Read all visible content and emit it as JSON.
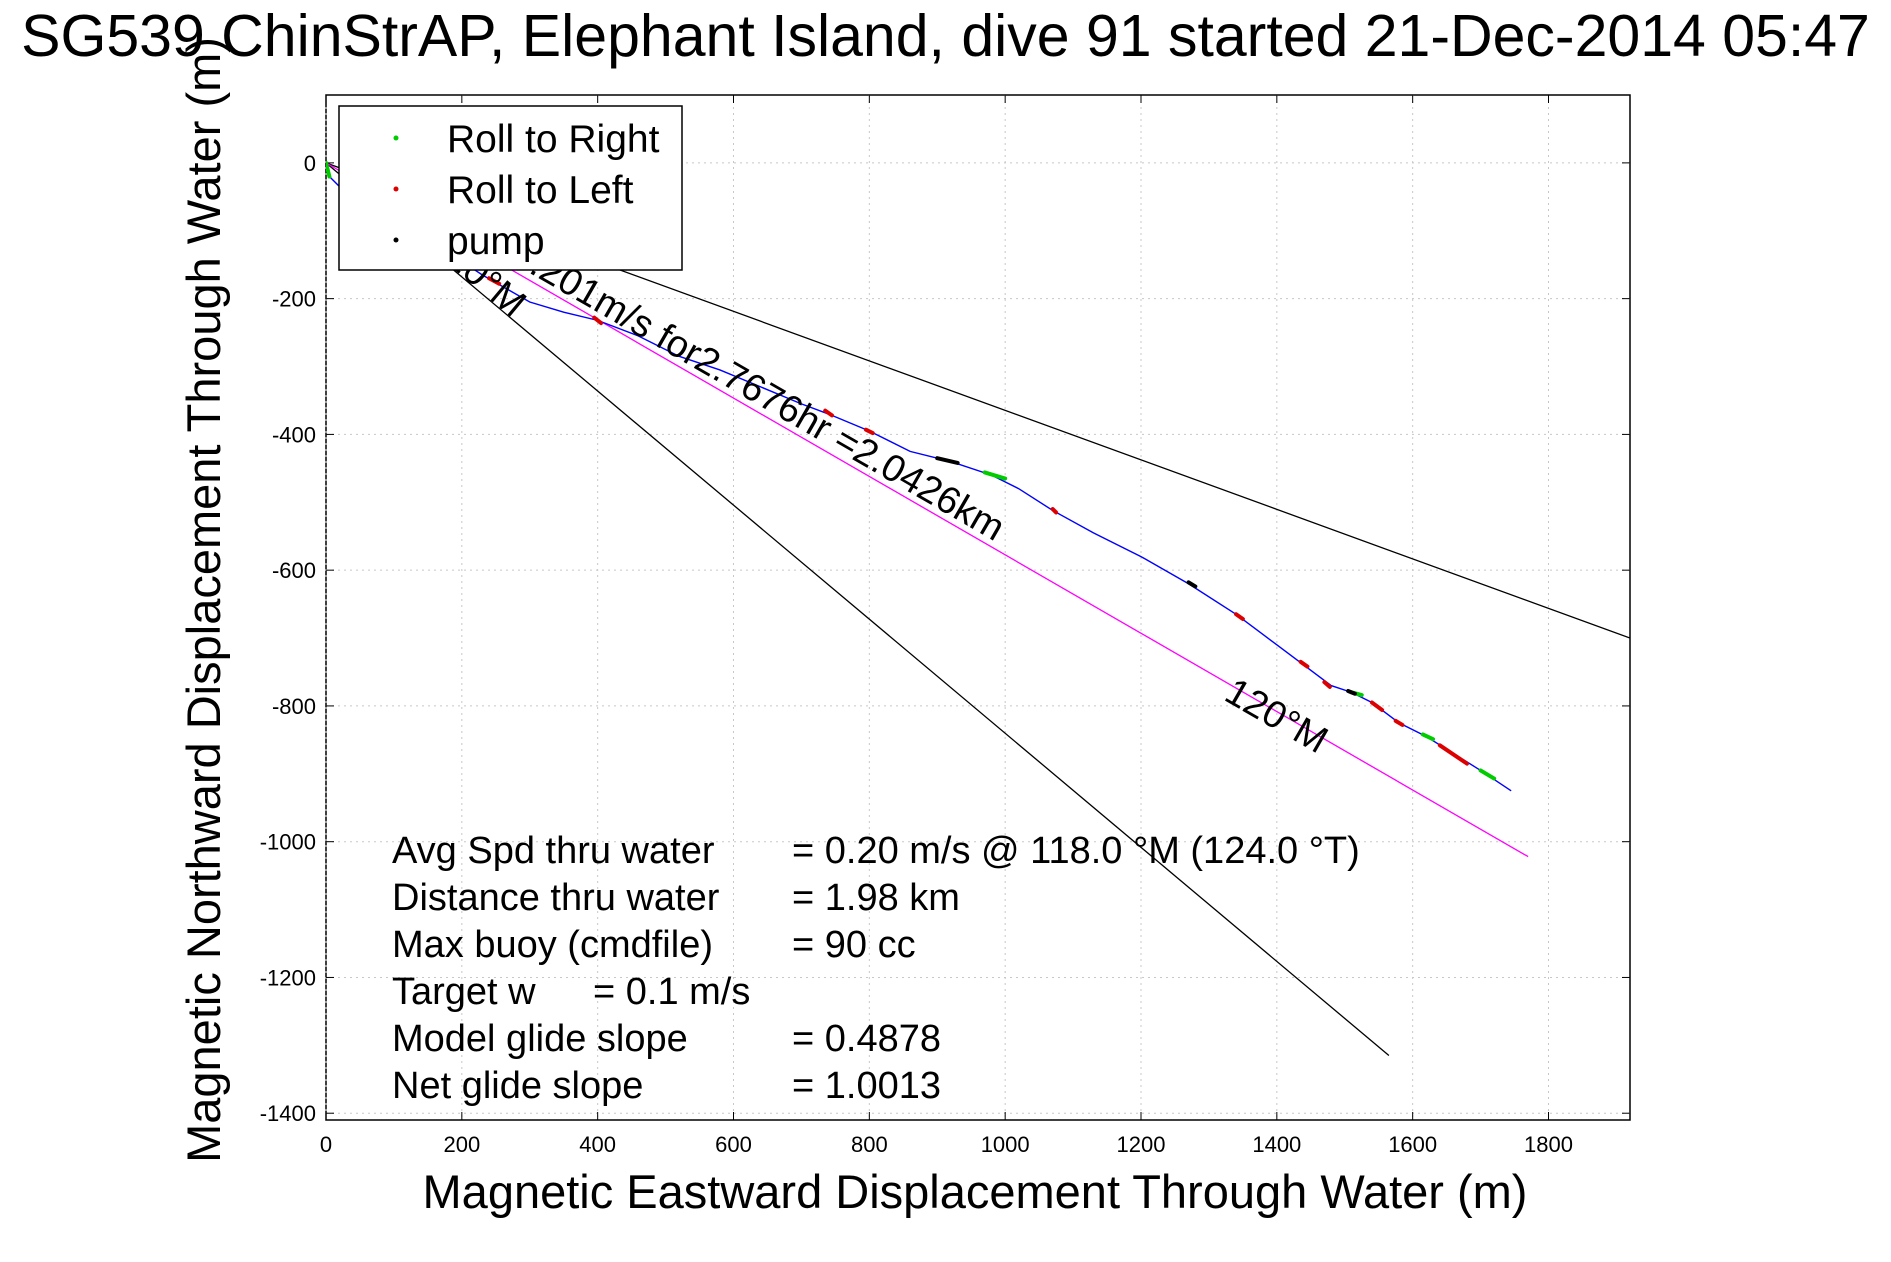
{
  "chart_data": {
    "type": "line",
    "title": "SG539 ChinStrAP, Elephant Island, dive 91 started 21-Dec-2014 05:47",
    "xlabel": "Magnetic Eastward Displacement Through Water (m)",
    "ylabel": "Magnetic Northward Displacement Through Water (m)",
    "xlim": [
      0,
      1920
    ],
    "ylim": [
      -1410,
      100
    ],
    "xticks": [
      0,
      200,
      400,
      600,
      800,
      1000,
      1200,
      1400,
      1600,
      1800
    ],
    "yticks": [
      0,
      -200,
      -400,
      -600,
      -800,
      -1000,
      -1200,
      -1400
    ],
    "grid": true,
    "legend_position": "top-left",
    "legend": [
      {
        "label": "Roll to Right",
        "color": "#00cc00"
      },
      {
        "label": "Roll to Left",
        "color": "#dd0000"
      },
      {
        "label": "pump",
        "color": "#000000"
      }
    ],
    "track": {
      "color": "#0000ff",
      "points": [
        [
          0,
          0
        ],
        [
          5,
          -20
        ],
        [
          20,
          -35
        ],
        [
          60,
          -60
        ],
        [
          110,
          -90
        ],
        [
          170,
          -125
        ],
        [
          230,
          -165
        ],
        [
          300,
          -205
        ],
        [
          350,
          -220
        ],
        [
          400,
          -232
        ],
        [
          460,
          -255
        ],
        [
          520,
          -285
        ],
        [
          580,
          -305
        ],
        [
          640,
          -330
        ],
        [
          700,
          -355
        ],
        [
          740,
          -370
        ],
        [
          800,
          -395
        ],
        [
          860,
          -425
        ],
        [
          920,
          -440
        ],
        [
          980,
          -460
        ],
        [
          1020,
          -480
        ],
        [
          1070,
          -512
        ],
        [
          1130,
          -545
        ],
        [
          1200,
          -580
        ],
        [
          1270,
          -620
        ],
        [
          1340,
          -665
        ],
        [
          1400,
          -710
        ],
        [
          1440,
          -740
        ],
        [
          1480,
          -770
        ],
        [
          1510,
          -780
        ],
        [
          1540,
          -795
        ],
        [
          1580,
          -825
        ],
        [
          1620,
          -845
        ],
        [
          1660,
          -870
        ],
        [
          1700,
          -895
        ],
        [
          1745,
          -925
        ]
      ]
    },
    "roll_right_segments": [
      [
        [
          0,
          0
        ],
        [
          5,
          -20
        ]
      ],
      [
        [
          970,
          -456
        ],
        [
          1000,
          -465
        ]
      ],
      [
        [
          1510,
          -780
        ],
        [
          1525,
          -784
        ]
      ],
      [
        [
          1615,
          -842
        ],
        [
          1630,
          -849
        ]
      ],
      [
        [
          1700,
          -895
        ],
        [
          1720,
          -907
        ]
      ]
    ],
    "roll_left_segments": [
      [
        [
          240,
          -170
        ],
        [
          255,
          -178
        ]
      ],
      [
        [
          395,
          -228
        ],
        [
          405,
          -236
        ]
      ],
      [
        [
          735,
          -365
        ],
        [
          745,
          -372
        ]
      ],
      [
        [
          795,
          -393
        ],
        [
          805,
          -398
        ]
      ],
      [
        [
          1070,
          -510
        ],
        [
          1075,
          -515
        ]
      ],
      [
        [
          1340,
          -665
        ],
        [
          1350,
          -672
        ]
      ],
      [
        [
          1435,
          -735
        ],
        [
          1445,
          -742
        ]
      ],
      [
        [
          1470,
          -765
        ],
        [
          1478,
          -772
        ]
      ],
      [
        [
          1540,
          -795
        ],
        [
          1555,
          -806
        ]
      ],
      [
        [
          1575,
          -822
        ],
        [
          1585,
          -828
        ]
      ],
      [
        [
          1640,
          -858
        ],
        [
          1680,
          -885
        ]
      ]
    ],
    "pump_segments": [
      [
        [
          900,
          -435
        ],
        [
          930,
          -442
        ]
      ],
      [
        [
          1270,
          -618
        ],
        [
          1280,
          -624
        ]
      ],
      [
        [
          1505,
          -778
        ],
        [
          1515,
          -782
        ]
      ]
    ],
    "reference_lines": [
      {
        "name": "direction-line-upper",
        "color": "#000000",
        "points": [
          [
            0,
            0
          ],
          [
            1920,
            -700
          ]
        ]
      },
      {
        "name": "direction-line-lower",
        "color": "#000000",
        "points": [
          [
            0,
            0
          ],
          [
            1565,
            -1315
          ]
        ]
      },
      {
        "name": "heading-line",
        "color": "#ff00ff",
        "points": [
          [
            0,
            0
          ],
          [
            1770,
            -1022
          ]
        ]
      }
    ],
    "annotations": [
      {
        "text": "120°M",
        "anchor": [
          1320,
          -790
        ],
        "angle": 30
      },
      {
        "text": "120°M",
        "anchor": [
          150,
          -125
        ],
        "angle": 40
      },
      {
        "text": "0.201m/s for2.7676hr =2.0426km",
        "anchor": [
          270,
          -145
        ],
        "angle": 30
      }
    ],
    "stats": [
      {
        "label": "Avg Spd thru water",
        "value": "=  0.20 m/s @ 118.0 °M (124.0 °T)"
      },
      {
        "label": "Distance thru water",
        "value": "=  1.98 km"
      },
      {
        "label": "Max buoy (cmdfile)",
        "value": "= 90 cc"
      },
      {
        "label": "Target w",
        "value": "= 0.1 m/s"
      },
      {
        "label": "Model glide slope",
        "value": "= 0.4878"
      },
      {
        "label": "Net glide slope",
        "value": "= 1.0013"
      }
    ]
  }
}
